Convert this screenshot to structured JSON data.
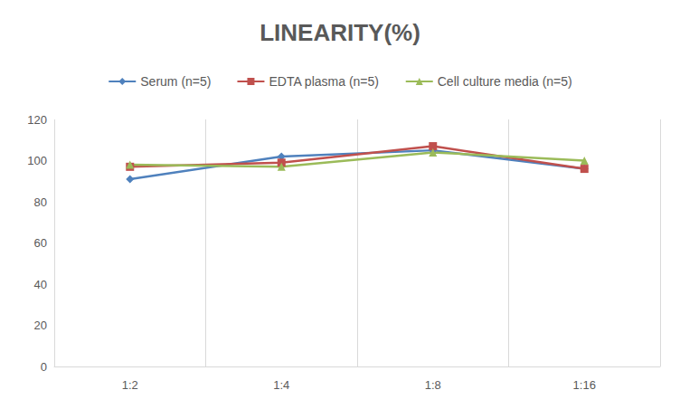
{
  "chart_data": {
    "type": "line",
    "title": "LINEARITY(%)",
    "categories": [
      "1:2",
      "1:4",
      "1:8",
      "1:16"
    ],
    "series": [
      {
        "name": "Serum (n=5)",
        "color": "#4f81bd",
        "marker": "diamond",
        "values": [
          91,
          102,
          105,
          96
        ]
      },
      {
        "name": "EDTA plasma (n=5)",
        "color": "#c0504d",
        "marker": "square",
        "values": [
          97,
          99,
          107,
          96
        ]
      },
      {
        "name": "Cell culture media (n=5)",
        "color": "#9bbb59",
        "marker": "triangle",
        "values": [
          98,
          97,
          104,
          100
        ]
      }
    ],
    "ylim": [
      0,
      120
    ],
    "yticks": [
      0,
      20,
      40,
      60,
      80,
      100,
      120
    ],
    "grid": true,
    "legend": "top"
  }
}
